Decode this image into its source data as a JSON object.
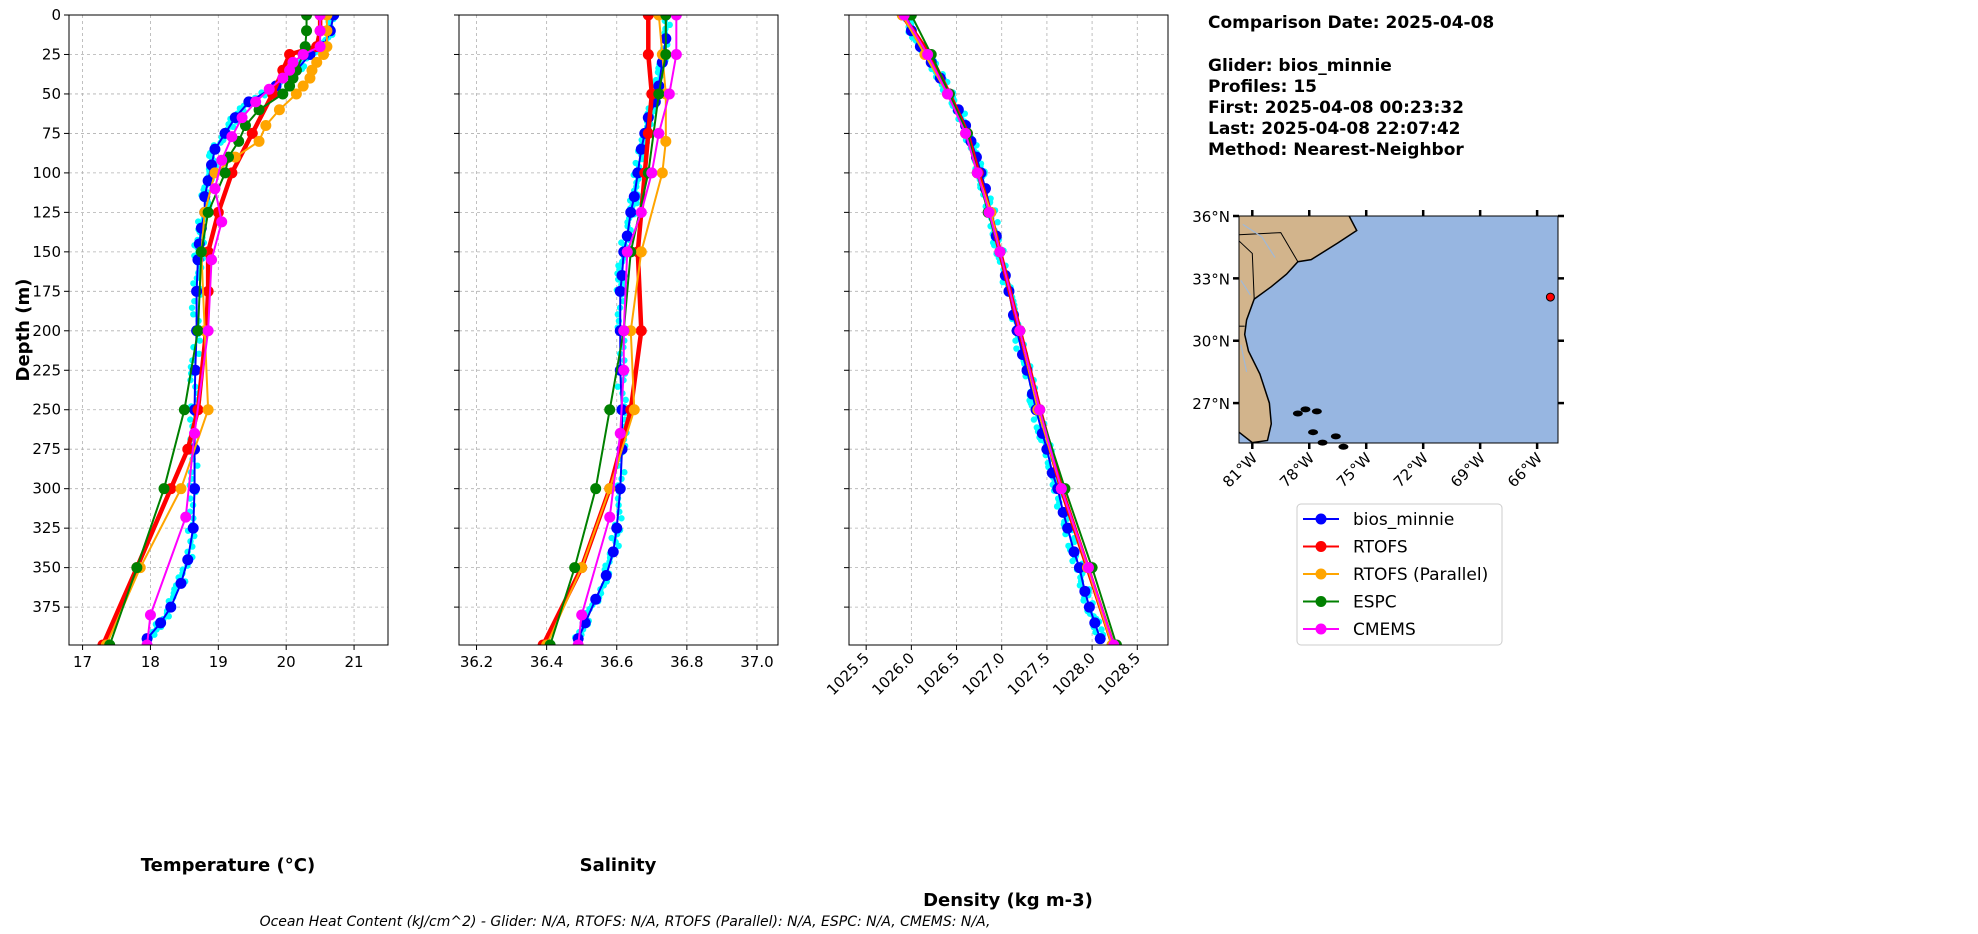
{
  "chart_data": [
    {
      "type": "line",
      "xlabel": "Temperature (°C)",
      "ylabel": "Depth (m)",
      "xlim": [
        16.8,
        21.5
      ],
      "ylim": [
        399,
        0
      ],
      "xticks": [
        "17",
        "18",
        "19",
        "20",
        "21"
      ],
      "yticks": [
        "0",
        "25",
        "50",
        "75",
        "100",
        "125",
        "150",
        "175",
        "200",
        "225",
        "250",
        "275",
        "300",
        "325",
        "350",
        "375"
      ],
      "grid": true,
      "series": [
        {
          "name": "bios_minnie",
          "color": "#0000ff",
          "depth": [
            0,
            10,
            20,
            25,
            35,
            45,
            55,
            65,
            75,
            85,
            95,
            105,
            115,
            125,
            135,
            145,
            155,
            175,
            200,
            225,
            250,
            275,
            300,
            325,
            345,
            360,
            375,
            385,
            395
          ],
          "values": [
            20.7,
            20.65,
            20.55,
            20.35,
            20.15,
            19.85,
            19.45,
            19.25,
            19.1,
            18.95,
            18.9,
            18.85,
            18.8,
            18.8,
            18.75,
            18.72,
            18.7,
            18.68,
            18.68,
            18.66,
            18.65,
            18.65,
            18.65,
            18.63,
            18.55,
            18.45,
            18.3,
            18.15,
            17.95
          ]
        },
        {
          "name": "RTOFS",
          "color": "#ff0000",
          "depth": [
            0,
            10,
            20,
            25,
            35,
            50,
            75,
            100,
            125,
            150,
            175,
            200,
            250,
            275,
            300,
            350,
            399
          ],
          "values": [
            20.5,
            20.5,
            20.45,
            20.05,
            19.95,
            19.8,
            19.5,
            19.2,
            19.0,
            18.85,
            18.85,
            18.82,
            18.7,
            18.55,
            18.3,
            17.8,
            17.3
          ]
        },
        {
          "name": "RTOFS (Parallel)",
          "color": "#ffa500",
          "depth": [
            0,
            10,
            20,
            25,
            30,
            35,
            40,
            45,
            50,
            60,
            70,
            80,
            90,
            100,
            125,
            150,
            200,
            250,
            300,
            350,
            399
          ],
          "values": [
            20.6,
            20.6,
            20.6,
            20.55,
            20.45,
            20.38,
            20.35,
            20.25,
            20.15,
            19.9,
            19.7,
            19.6,
            19.25,
            18.95,
            18.8,
            18.75,
            18.8,
            18.85,
            18.45,
            17.85,
            17.35
          ]
        },
        {
          "name": "ESPC",
          "color": "#008000",
          "depth": [
            0,
            10,
            20,
            25,
            35,
            40,
            45,
            50,
            60,
            70,
            80,
            90,
            100,
            125,
            150,
            200,
            250,
            300,
            350,
            399
          ],
          "values": [
            20.3,
            20.3,
            20.28,
            20.25,
            20.15,
            20.1,
            20.05,
            19.95,
            19.6,
            19.4,
            19.3,
            19.15,
            19.1,
            18.85,
            18.75,
            18.7,
            18.5,
            18.2,
            17.8,
            17.4
          ]
        },
        {
          "name": "CMEMS",
          "color": "#ff00ff",
          "depth": [
            0,
            10,
            20,
            25,
            30,
            35,
            40,
            47,
            55,
            65,
            77,
            92,
            110,
            131,
            155,
            200,
            265,
            318,
            380,
            399
          ],
          "values": [
            20.5,
            20.5,
            20.5,
            20.25,
            20.1,
            20.05,
            19.95,
            19.75,
            19.55,
            19.35,
            19.2,
            19.05,
            18.95,
            19.05,
            18.9,
            18.85,
            18.65,
            18.52,
            18.0,
            17.95
          ]
        }
      ]
    },
    {
      "type": "line",
      "xlabel": "Salinity",
      "ylabel": "",
      "xlim": [
        36.15,
        37.06
      ],
      "ylim": [
        399,
        0
      ],
      "xticks": [
        "36.2",
        "36.4",
        "36.6",
        "36.8",
        "37.0"
      ],
      "grid": true,
      "series": [
        {
          "name": "bios_minnie",
          "color": "#0000ff",
          "depth": [
            0,
            15,
            30,
            45,
            55,
            65,
            75,
            85,
            100,
            115,
            125,
            140,
            150,
            165,
            175,
            200,
            225,
            250,
            275,
            300,
            325,
            340,
            355,
            370,
            385,
            395
          ],
          "values": [
            36.74,
            36.74,
            36.73,
            36.72,
            36.71,
            36.69,
            36.68,
            36.67,
            36.66,
            36.65,
            36.64,
            36.63,
            36.62,
            36.615,
            36.61,
            36.61,
            36.61,
            36.615,
            36.615,
            36.61,
            36.6,
            36.59,
            36.57,
            36.54,
            36.51,
            36.49
          ]
        },
        {
          "name": "RTOFS",
          "color": "#ff0000",
          "depth": [
            0,
            25,
            50,
            75,
            100,
            150,
            200,
            250,
            300,
            350,
            399
          ],
          "values": [
            36.69,
            36.69,
            36.7,
            36.69,
            36.68,
            36.66,
            36.67,
            36.64,
            36.58,
            36.5,
            36.39
          ]
        },
        {
          "name": "RTOFS (Parallel)",
          "color": "#ffa500",
          "depth": [
            0,
            25,
            50,
            80,
            100,
            150,
            200,
            250,
            300,
            350,
            399
          ],
          "values": [
            36.72,
            36.73,
            36.74,
            36.74,
            36.73,
            36.67,
            36.64,
            36.65,
            36.58,
            36.5,
            36.4
          ]
        },
        {
          "name": "ESPC",
          "color": "#008000",
          "depth": [
            0,
            25,
            50,
            100,
            150,
            200,
            250,
            300,
            350,
            399
          ],
          "values": [
            36.74,
            36.74,
            36.72,
            36.69,
            36.64,
            36.62,
            36.58,
            36.54,
            36.48,
            36.41
          ]
        },
        {
          "name": "CMEMS",
          "color": "#ff00ff",
          "depth": [
            0,
            25,
            50,
            75,
            100,
            125,
            150,
            200,
            225,
            265,
            318,
            380,
            399
          ],
          "values": [
            36.77,
            36.77,
            36.75,
            36.72,
            36.7,
            36.67,
            36.63,
            36.62,
            36.62,
            36.61,
            36.58,
            36.5,
            36.49
          ]
        }
      ]
    },
    {
      "type": "line",
      "xlabel": "Density (kg m-3)",
      "ylabel": "",
      "xlim": [
        1025.31,
        1028.84
      ],
      "ylim": [
        399,
        0
      ],
      "xticks": [
        "1025.5",
        "1026.0",
        "1026.5",
        "1027.0",
        "1027.5",
        "1028.0",
        "1028.5"
      ],
      "grid": true,
      "series": [
        {
          "name": "bios_minnie",
          "color": "#0000ff",
          "depth": [
            0,
            10,
            20,
            30,
            40,
            50,
            60,
            70,
            80,
            90,
            100,
            110,
            125,
            140,
            150,
            165,
            175,
            190,
            200,
            215,
            225,
            240,
            250,
            265,
            275,
            290,
            300,
            315,
            325,
            340,
            350,
            365,
            375,
            385,
            395
          ],
          "values": [
            1025.95,
            1026.0,
            1026.1,
            1026.22,
            1026.32,
            1026.42,
            1026.52,
            1026.6,
            1026.66,
            1026.72,
            1026.77,
            1026.82,
            1026.88,
            1026.94,
            1026.98,
            1027.04,
            1027.08,
            1027.13,
            1027.17,
            1027.23,
            1027.28,
            1027.34,
            1027.38,
            1027.45,
            1027.5,
            1027.56,
            1027.62,
            1027.68,
            1027.73,
            1027.8,
            1027.86,
            1027.92,
            1027.97,
            1028.03,
            1028.09
          ]
        },
        {
          "name": "RTOFS",
          "color": "#ff0000",
          "depth": [
            0,
            25,
            50,
            75,
            100,
            125,
            150,
            200,
            250,
            300,
            350,
            399
          ],
          "values": [
            1025.9,
            1026.2,
            1026.42,
            1026.62,
            1026.74,
            1026.87,
            1026.98,
            1027.2,
            1027.42,
            1027.66,
            1027.95,
            1028.23
          ]
        },
        {
          "name": "RTOFS (Parallel)",
          "color": "#ffa500",
          "depth": [
            0,
            25,
            50,
            75,
            100,
            125,
            150,
            200,
            250,
            300,
            350,
            399
          ],
          "values": [
            1025.9,
            1026.15,
            1026.4,
            1026.6,
            1026.73,
            1026.88,
            1026.98,
            1027.2,
            1027.4,
            1027.66,
            1027.95,
            1028.22
          ]
        },
        {
          "name": "ESPC",
          "color": "#008000",
          "depth": [
            0,
            25,
            50,
            75,
            100,
            125,
            150,
            200,
            250,
            300,
            350,
            399
          ],
          "values": [
            1026.0,
            1026.22,
            1026.42,
            1026.62,
            1026.73,
            1026.85,
            1026.98,
            1027.2,
            1027.42,
            1027.7,
            1028.0,
            1028.27
          ]
        },
        {
          "name": "CMEMS",
          "color": "#ff00ff",
          "depth": [
            0,
            25,
            50,
            75,
            100,
            125,
            150,
            200,
            250,
            300,
            350,
            399
          ],
          "values": [
            1025.92,
            1026.18,
            1026.4,
            1026.6,
            1026.73,
            1026.86,
            1026.98,
            1027.2,
            1027.42,
            1027.66,
            1027.96,
            1028.24
          ]
        }
      ]
    }
  ],
  "info": {
    "comparison_date": "Comparison Date: 2025-04-08",
    "glider": "Glider: bios_minnie",
    "profiles": "Profiles: 15",
    "first": "First: 2025-04-08 00:23:32",
    "last": "Last: 2025-04-08 22:07:42",
    "method": "Method: Nearest-Neighbor"
  },
  "map": {
    "lon_range": [
      -81.7,
      -64.9
    ],
    "lat_range": [
      25.08,
      36.0
    ],
    "lat_ticks": [
      "36°N",
      "33°N",
      "30°N",
      "27°N"
    ],
    "lat_values": [
      36,
      33,
      30,
      27
    ],
    "lon_ticks": [
      "81°W",
      "78°W",
      "75°W",
      "72°W",
      "69°W",
      "66°W"
    ],
    "lon_values": [
      -81,
      -78,
      -75,
      -72,
      -69,
      -66
    ],
    "glider_position": {
      "lon": -65.3,
      "lat": 32.1
    },
    "ocean_color": "#97b6e1",
    "land_color": "#d2b48c"
  },
  "legend": [
    "bios_minnie",
    "RTOFS",
    "RTOFS (Parallel)",
    "ESPC",
    "CMEMS"
  ],
  "footer": "Ocean Heat Content (kJ/cm^2) - Glider: N/A,  RTOFS: N/A,  RTOFS (Parallel): N/A,  ESPC: N/A,  CMEMS: N/A,"
}
